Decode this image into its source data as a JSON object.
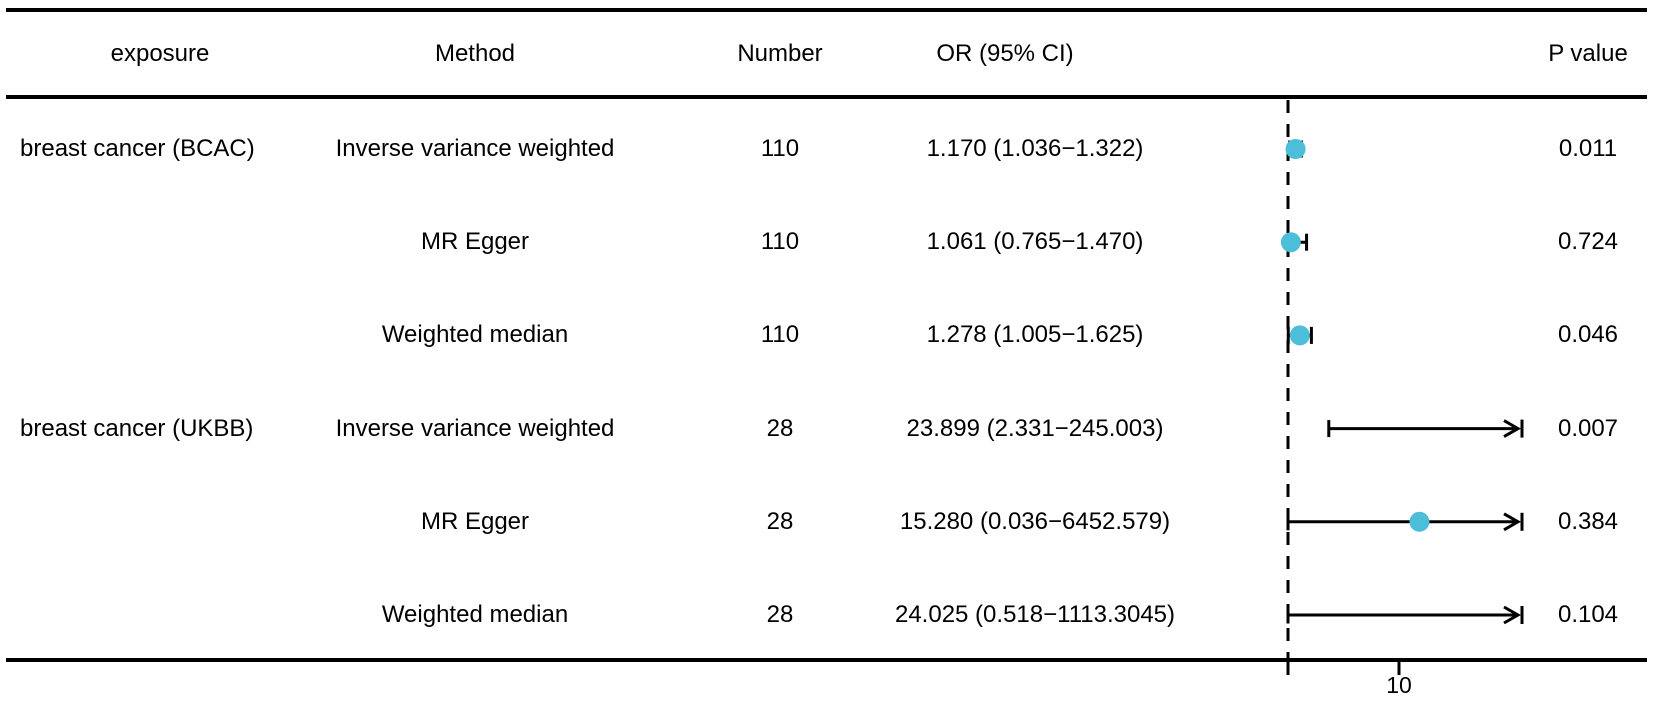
{
  "header": {
    "exposure": "exposure",
    "method": "Method",
    "number": "Number",
    "or_ci": "OR (95% CI)",
    "p_value": "P value"
  },
  "colors": {
    "marker": "#4cbed9",
    "line": "#000000",
    "text": "#000000",
    "background": "#ffffff"
  },
  "chart_data": {
    "type": "forest",
    "columns": [
      "exposure",
      "Method",
      "Number",
      "OR (95% CI)",
      "P value"
    ],
    "axis": {
      "scale": "log10",
      "ref_line_value": 1,
      "ticks": [
        {
          "value": 1,
          "label": ""
        },
        {
          "value": 10,
          "label": "10"
        }
      ]
    },
    "rows": [
      {
        "exposure": "breast cancer (BCAC)",
        "method": "Inverse variance weighted",
        "number": "110",
        "or_ci_text": "1.170 (1.036−1.322)",
        "or": 1.17,
        "ci_low": 1.036,
        "ci_high": 1.322,
        "p_value": "0.011",
        "marker": true
      },
      {
        "exposure": "",
        "method": "MR Egger",
        "number": "110",
        "or_ci_text": "1.061 (0.765−1.470)",
        "or": 1.061,
        "ci_low": 0.765,
        "ci_high": 1.47,
        "p_value": "0.724",
        "marker": true
      },
      {
        "exposure": "",
        "method": "Weighted median",
        "number": "110",
        "or_ci_text": "1.278 (1.005−1.625)",
        "or": 1.278,
        "ci_low": 1.005,
        "ci_high": 1.625,
        "p_value": "0.046",
        "marker": true
      },
      {
        "exposure": "breast cancer (UKBB)",
        "method": "Inverse variance weighted",
        "number": "28",
        "or_ci_text": "23.899 (2.331−245.003)",
        "or": 23.899,
        "ci_low": 2.331,
        "ci_high": 245.003,
        "p_value": "0.007",
        "marker": false
      },
      {
        "exposure": "",
        "method": "MR Egger",
        "number": "28",
        "or_ci_text": "15.280 (0.036−6452.579)",
        "or": 15.28,
        "ci_low": 0.036,
        "ci_high": 6452.579,
        "p_value": "0.384",
        "marker": true
      },
      {
        "exposure": "",
        "method": "Weighted median",
        "number": "28",
        "or_ci_text": "24.025 (0.518−1113.3045)",
        "or": 24.025,
        "ci_low": 0.518,
        "ci_high": 1113.3045,
        "p_value": "0.104",
        "marker": false
      }
    ]
  }
}
